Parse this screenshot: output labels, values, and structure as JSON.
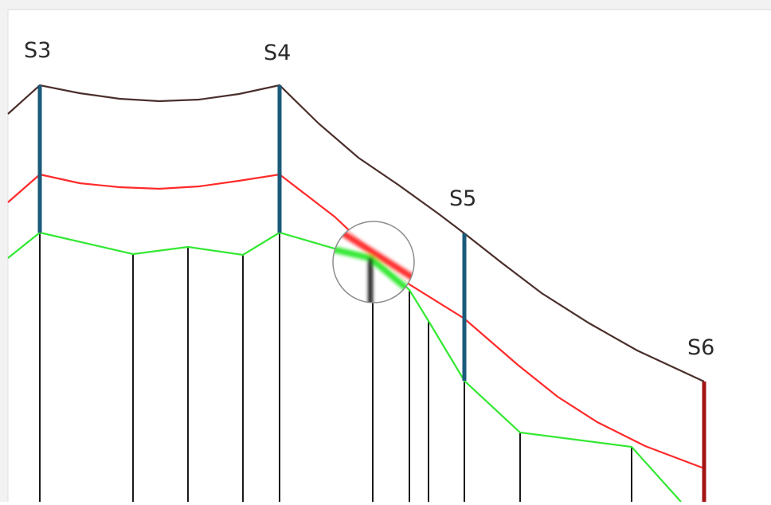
{
  "stations": [
    {
      "id": "s3",
      "label": "S3"
    },
    {
      "id": "s4",
      "label": "S4"
    },
    {
      "id": "s5",
      "label": "S5"
    },
    {
      "id": "s6",
      "label": "S6"
    }
  ],
  "colors": {
    "background": "#ffffff",
    "frame_shadow": "#d9d9d9",
    "top_profile": "#4a2f2c",
    "red_profile": "#ff2a2a",
    "green_profile": "#33e833",
    "station_post": "#1a5a7a",
    "station_post_end": "#a31515",
    "vertical_lines": "#1a1a1a",
    "magnifier_ring": "#8c8c8c",
    "label_text": "#2a2a2a"
  }
}
